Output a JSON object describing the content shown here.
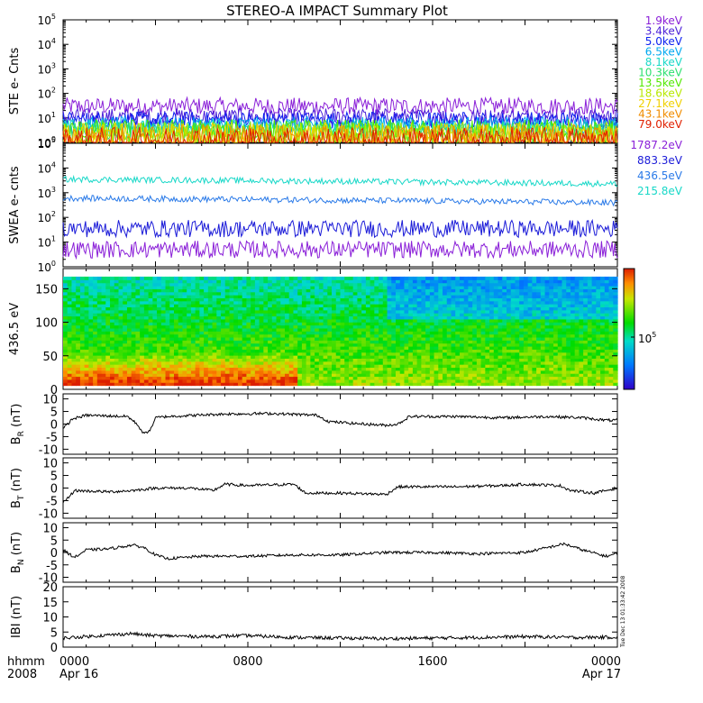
{
  "chart_data": {
    "type": "line",
    "title": "STEREO-A IMPACT Summary Plot",
    "panels": [
      {
        "id": "ste",
        "ylabel": "STE e- Cnts",
        "yscale": "log",
        "ylim_exp": [
          0,
          5
        ],
        "series": [
          {
            "name": "1.9keV",
            "color": "#8a1fd8",
            "level": 30
          },
          {
            "name": "3.4keV",
            "color": "#4b1fd8",
            "level": 11
          },
          {
            "name": "5.0keV",
            "color": "#0a1ef0",
            "level": 8
          },
          {
            "name": "6.5keV",
            "color": "#00a8f0",
            "level": 5
          },
          {
            "name": "8.1keV",
            "color": "#18d8c8",
            "level": 4
          },
          {
            "name": "10.3keV",
            "color": "#2ce070",
            "level": 3
          },
          {
            "name": "13.5keV",
            "color": "#52e800",
            "level": 2.5
          },
          {
            "name": "18.6keV",
            "color": "#b8e800",
            "level": 2
          },
          {
            "name": "27.1keV",
            "color": "#f0d000",
            "level": 1.8
          },
          {
            "name": "43.1keV",
            "color": "#f08c00",
            "level": 1.5
          },
          {
            "name": "79.0keV",
            "color": "#e02000",
            "level": 1.2
          }
        ]
      },
      {
        "id": "swea",
        "ylabel": "SWEA e- cnts",
        "yscale": "log",
        "ylim_exp": [
          0,
          5
        ],
        "series": [
          {
            "name": "1787.2eV",
            "color": "#8a1fd8",
            "level": 5
          },
          {
            "name": "883.3eV",
            "color": "#1a1ad8",
            "level": 35
          },
          {
            "name": "436.5eV",
            "color": "#2a7ae8",
            "level": 600
          },
          {
            "name": "215.8eV",
            "color": "#18d8c8",
            "level": 3500
          }
        ]
      },
      {
        "id": "pad",
        "ylabel": "436.5 eV",
        "ylim": [
          0,
          180
        ],
        "yticks": [
          "0",
          "50",
          "100",
          "150"
        ],
        "colorbar_label": "10",
        "colorbar_exp": "5"
      },
      {
        "id": "br",
        "ylabel_main": "B",
        "ylabel_sub": "R",
        "ylabel_unit": " (nT)",
        "ylim": [
          -12,
          12
        ],
        "yticks": [
          "10",
          "5",
          "0",
          "-5",
          "-10"
        ],
        "keypoints": [
          [
            0,
            -2
          ],
          [
            0.4,
            2
          ],
          [
            1,
            3.5
          ],
          [
            2.8,
            3
          ],
          [
            3.2,
            0
          ],
          [
            3.5,
            -4
          ],
          [
            3.8,
            -2
          ],
          [
            4,
            2.5
          ],
          [
            4.5,
            3
          ],
          [
            7,
            4
          ],
          [
            9,
            4.2
          ],
          [
            11,
            3.5
          ],
          [
            11.5,
            1
          ],
          [
            12.5,
            0.3
          ],
          [
            14,
            -0.5
          ],
          [
            14.5,
            0
          ],
          [
            15,
            3
          ],
          [
            17,
            3
          ],
          [
            19,
            2.5
          ],
          [
            21,
            3
          ],
          [
            22.5,
            2.5
          ],
          [
            23.5,
            1.5
          ],
          [
            24,
            1.5
          ]
        ]
      },
      {
        "id": "bt",
        "ylabel_main": "B",
        "ylabel_sub": "T",
        "ylabel_unit": " (nT)",
        "ylim": [
          -12,
          12
        ],
        "yticks": [
          "10",
          "5",
          "0",
          "-5",
          "-10"
        ],
        "keypoints": [
          [
            0,
            -6
          ],
          [
            0.5,
            -1
          ],
          [
            2,
            -1.5
          ],
          [
            3,
            -1
          ],
          [
            4,
            0
          ],
          [
            5.5,
            0
          ],
          [
            6.5,
            -1
          ],
          [
            7,
            1.5
          ],
          [
            8,
            1
          ],
          [
            10,
            1.5
          ],
          [
            10.5,
            -2
          ],
          [
            12,
            -2
          ],
          [
            14,
            -2.5
          ],
          [
            14.5,
            0.5
          ],
          [
            17,
            0.5
          ],
          [
            19,
            1
          ],
          [
            20,
            1.5
          ],
          [
            21.5,
            1
          ],
          [
            22,
            -1
          ],
          [
            23,
            -2
          ],
          [
            24,
            0
          ]
        ]
      },
      {
        "id": "bn",
        "ylabel_main": "B",
        "ylabel_sub": "N",
        "ylabel_unit": " (nT)",
        "ylim": [
          -12,
          12
        ],
        "yticks": [
          "10",
          "5",
          "0",
          "-5",
          "-10"
        ],
        "keypoints": [
          [
            0,
            1
          ],
          [
            0.5,
            -2
          ],
          [
            1,
            1
          ],
          [
            2,
            1.5
          ],
          [
            3,
            3
          ],
          [
            3.5,
            2
          ],
          [
            4,
            -1
          ],
          [
            4.5,
            -2.5
          ],
          [
            6,
            -1.5
          ],
          [
            8,
            -1.5
          ],
          [
            10,
            -1
          ],
          [
            12,
            -1
          ],
          [
            14,
            0
          ],
          [
            16,
            0
          ],
          [
            18,
            -0.5
          ],
          [
            20,
            0
          ],
          [
            21,
            2
          ],
          [
            21.7,
            3.5
          ],
          [
            22.5,
            1
          ],
          [
            23.5,
            -1.5
          ],
          [
            24,
            -0.5
          ]
        ]
      },
      {
        "id": "bmag",
        "ylabel_main": "IBI",
        "ylabel_sub": "",
        "ylabel_unit": " (nT)",
        "ylim": [
          0,
          20
        ],
        "yticks": [
          "20",
          "15",
          "10",
          "5",
          "0"
        ],
        "keypoints": [
          [
            0,
            3
          ],
          [
            2,
            4
          ],
          [
            3,
            4.5
          ],
          [
            3.5,
            4
          ],
          [
            4,
            3.8
          ],
          [
            6,
            3.5
          ],
          [
            8,
            3.8
          ],
          [
            10,
            3.2
          ],
          [
            12,
            3
          ],
          [
            14,
            2.8
          ],
          [
            16,
            3
          ],
          [
            18,
            3.2
          ],
          [
            20,
            3.5
          ],
          [
            22,
            3.2
          ],
          [
            24,
            3.3
          ]
        ]
      }
    ],
    "x_axis": {
      "ticks": [
        "0000",
        "0800",
        "1600",
        "0000"
      ],
      "tick_dates": [
        "Apr 16",
        "",
        "",
        "Apr 17"
      ],
      "left_label_top": "hhmm",
      "left_label_bottom": "2008"
    },
    "side_stamp": "Tue Dec 13 01:33:42 2008"
  }
}
